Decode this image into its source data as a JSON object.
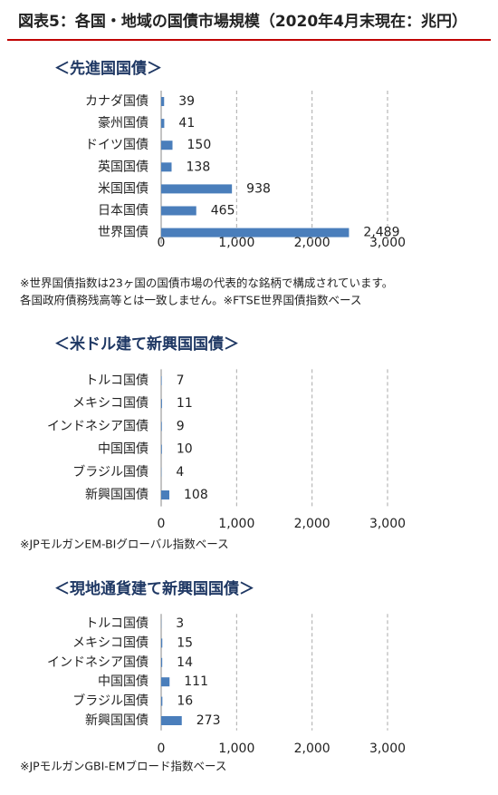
{
  "title": "図表5：各国・地域の国債市場規模（2020年4月末現在：兆円）",
  "chart_data": [
    {
      "type": "bar",
      "orientation": "horizontal",
      "title": "＜先進国国債＞",
      "categories": [
        "カナダ国債",
        "豪州国債",
        "ドイツ国債",
        "英国国債",
        "米国国債",
        "日本国債",
        "世界国債"
      ],
      "values": [
        39,
        41,
        150,
        138,
        938,
        465,
        2489
      ],
      "value_labels": [
        "39",
        "41",
        "150",
        "138",
        "938",
        "465",
        "2,489"
      ],
      "color": "#4a7ebb",
      "xlim": [
        0,
        3000
      ],
      "xticks": [
        0,
        {
          "value": 1000,
          "label": "1,000"
        },
        {
          "value": 2000,
          "label": "2,000"
        },
        {
          "value": 3000,
          "label": "3,000"
        }
      ],
      "grid": true,
      "notes": [
        "※世界国債指数は23ヶ国の国債市場の代表的な銘柄で構成されています。",
        "各国政府債務残高等とは一致しません。※FTSE世界国債指数ベース"
      ]
    },
    {
      "type": "bar",
      "orientation": "horizontal",
      "title": "＜米ドル建て新興国国債＞",
      "categories": [
        "トルコ国債",
        "メキシコ国債",
        "インドネシア国債",
        "中国国債",
        "ブラジル国債",
        "新興国国債"
      ],
      "values": [
        7,
        11,
        9,
        10,
        4,
        108
      ],
      "color": "#4a7ebb",
      "xlim": [
        0,
        3000
      ],
      "xticks": [
        0,
        {
          "value": 1000,
          "label": "1,000"
        },
        {
          "value": 2000,
          "label": "2,000"
        },
        {
          "value": 3000,
          "label": "3,000"
        }
      ],
      "grid": true,
      "notes": [
        "※JPモルガンEM-BIグローバル指数ベース"
      ]
    },
    {
      "type": "bar",
      "orientation": "horizontal",
      "title": "＜現地通貨建て新興国国債＞",
      "categories": [
        "トルコ国債",
        "メキシコ国債",
        "インドネシア国債",
        "中国国債",
        "ブラジル国債",
        "新興国国債"
      ],
      "values": [
        3,
        15,
        14,
        111,
        16,
        273
      ],
      "color": "#4a7ebb",
      "xlim": [
        0,
        3000
      ],
      "xticks": [
        0,
        {
          "value": 1000,
          "label": "1,000"
        },
        {
          "value": 2000,
          "label": "2,000"
        },
        {
          "value": 3000,
          "label": "3,000"
        }
      ],
      "grid": true,
      "notes": [
        "※JPモルガンGBI-EMブロード指数ベース"
      ]
    }
  ]
}
